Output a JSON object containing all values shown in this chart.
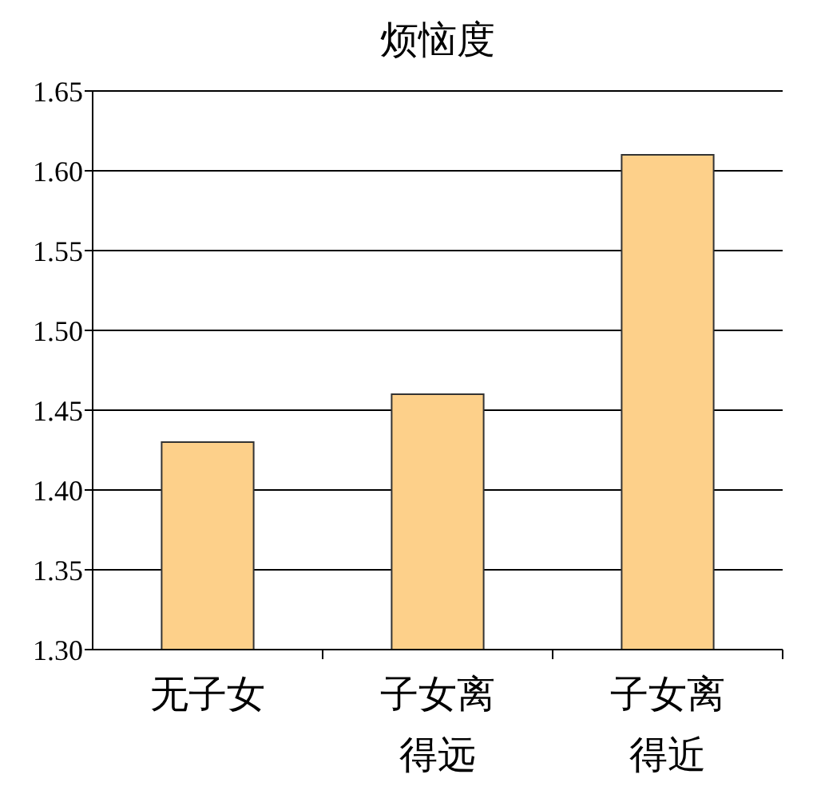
{
  "chart_data": {
    "type": "bar",
    "title": "烦恼度",
    "categories": [
      "无子女",
      "子女离得远",
      "子女离得近"
    ],
    "values": [
      1.43,
      1.46,
      1.61
    ],
    "color": "#fdd08a",
    "ylim": [
      1.3,
      1.65
    ],
    "yticks": [
      {
        "value": 1.3,
        "label": "1.30"
      },
      {
        "value": 1.35,
        "label": "1.35"
      },
      {
        "value": 1.4,
        "label": "1.40"
      },
      {
        "value": 1.45,
        "label": "1.45"
      },
      {
        "value": 1.5,
        "label": "1.50"
      },
      {
        "value": 1.55,
        "label": "1.55"
      },
      {
        "value": 1.6,
        "label": "1.60"
      },
      {
        "value": 1.65,
        "label": "1.65"
      }
    ],
    "grid": "y"
  }
}
